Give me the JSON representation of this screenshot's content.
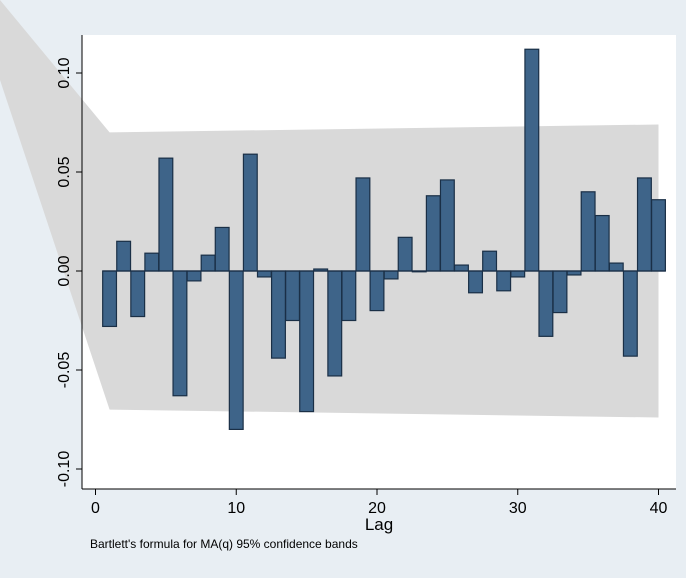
{
  "chart_data": {
    "type": "bar",
    "title": "",
    "xlabel": "Lag",
    "ylabel": "",
    "note": "Bartlett's formula for MA(q) 95% confidence bands",
    "xlim": [
      0,
      40
    ],
    "ylim": [
      -0.1,
      0.1
    ],
    "x_ticks": [
      0,
      10,
      20,
      30,
      40
    ],
    "x_tick_labels": [
      "0",
      "10",
      "20",
      "30",
      "40"
    ],
    "y_ticks": [
      -0.1,
      -0.05,
      0,
      0.05,
      0.1
    ],
    "y_tick_labels": [
      "-0.10",
      "-0.05",
      "0.00",
      "0.05",
      "0.10"
    ],
    "grid": false,
    "x": [
      1,
      2,
      3,
      4,
      5,
      6,
      7,
      8,
      9,
      10,
      11,
      12,
      13,
      14,
      15,
      16,
      17,
      18,
      19,
      20,
      21,
      22,
      23,
      24,
      25,
      26,
      27,
      28,
      29,
      30,
      31,
      32,
      33,
      34,
      35,
      36,
      37,
      38,
      39,
      40
    ],
    "values": [
      -0.028,
      0.015,
      -0.023,
      0.009,
      0.057,
      -0.063,
      -0.005,
      0.008,
      0.022,
      -0.08,
      0.059,
      -0.003,
      -0.044,
      -0.025,
      -0.071,
      0.001,
      -0.053,
      -0.025,
      0.047,
      -0.02,
      -0.004,
      0.017,
      0.0,
      0.038,
      0.046,
      0.003,
      -0.011,
      0.01,
      -0.01,
      -0.003,
      0.112,
      -0.033,
      -0.021,
      -0.002,
      0.04,
      0.028,
      0.004,
      -0.043,
      0.047,
      0.036
    ],
    "confidence_band": {
      "label": "95% confidence bands",
      "lag": [
        0,
        1,
        40
      ],
      "upper": [
        0.1,
        0.07,
        0.074
      ],
      "lower": [
        -0.1,
        -0.07,
        -0.074
      ]
    },
    "colors": {
      "background": "#e8eef3",
      "plot_bg": "#ffffff",
      "band": "#d9d9d9",
      "bar_fill": "#3e6489",
      "bar_stroke": "#1a2f46"
    }
  }
}
